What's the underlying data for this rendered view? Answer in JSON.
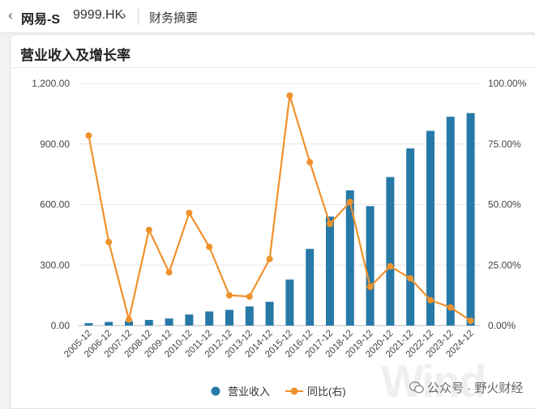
{
  "header": {
    "stock_name": "网易-S",
    "stock_code": "9999.HK",
    "section": "财务摘要",
    "back_icon": "chevron-left-icon",
    "forward_icon": "chevron-right-icon"
  },
  "watermark": {
    "text": "Wind",
    "credit": "公众号 · 野火财经"
  },
  "chart_data": {
    "type": "bar",
    "title": "营业收入及增长率",
    "categories": [
      "2005-12",
      "2006-12",
      "2007-12",
      "2008-12",
      "2009-12",
      "2010-12",
      "2011-12",
      "2012-12",
      "2013-12",
      "2014-12",
      "2015-12",
      "2016-12",
      "2017-12",
      "2018-12",
      "2019-12",
      "2020-12",
      "2021-12",
      "2022-12",
      "2023-12",
      "2024-12"
    ],
    "series": [
      {
        "name": "营业收入",
        "type": "bar",
        "axis": "left",
        "color": "#2779a7",
        "values": [
          12,
          18,
          22,
          28,
          35,
          55,
          70,
          78,
          95,
          118,
          228,
          380,
          540,
          670,
          592,
          736,
          878,
          965,
          1035,
          1053
        ]
      },
      {
        "name": "同比(右)",
        "type": "line",
        "axis": "right",
        "color": "#f0922b",
        "values": [
          78.5,
          34.5,
          2.5,
          39.5,
          22,
          46.5,
          32.5,
          12.5,
          12,
          27.5,
          95,
          67.5,
          42,
          51,
          16,
          24.5,
          19.5,
          10.5,
          7.5,
          2
        ]
      }
    ],
    "left_axis": {
      "ylim": [
        0,
        1200
      ],
      "ticks": [
        "0.00",
        "300.00",
        "600.00",
        "900.00",
        "1,200.00"
      ]
    },
    "right_axis": {
      "ylim": [
        0,
        100
      ],
      "ticks": [
        "0.00%",
        "25.00%",
        "50.00%",
        "75.00%",
        "100.00%"
      ]
    },
    "grid": true,
    "legend": {
      "position": "bottom",
      "items": [
        "营业收入",
        "同比(右)"
      ]
    }
  }
}
